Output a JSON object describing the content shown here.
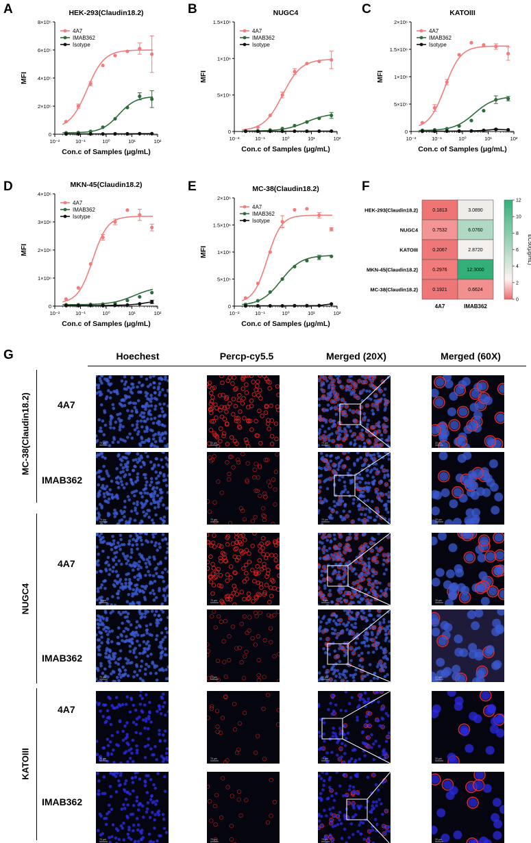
{
  "panel_letters": [
    "A",
    "B",
    "C",
    "D",
    "E",
    "F",
    "G"
  ],
  "legend_labels": [
    "4A7",
    "IMAB362",
    "Isotype"
  ],
  "colors": {
    "4A7": "#f27c7c",
    "IMAB362": "#2e6b3a",
    "Isotype": "#111111"
  },
  "chart_data": [
    {
      "type": "line",
      "title": "HEK-293(Claudin18.2)",
      "xlabel": "Con.c of Samples (μg/mL)",
      "ylabel": "MFI",
      "xscale": "log",
      "xlim": [
        0.01,
        100
      ],
      "ylim": [
        0,
        800000
      ],
      "yticks": [
        0,
        200000,
        400000,
        600000,
        800000
      ],
      "ytick_labels": [
        "0",
        "2×10⁵",
        "4×10⁵",
        "6×10⁵",
        "8×10⁵"
      ],
      "xtick_labels": [
        "10⁻²",
        "10⁻¹",
        "10⁰",
        "10¹",
        "10²"
      ],
      "series": [
        {
          "name": "4A7",
          "x": [
            0.0274,
            0.0823,
            0.247,
            0.741,
            2.22,
            6.67,
            20,
            60
          ],
          "y": [
            90000,
            200000,
            360000,
            490000,
            560000,
            590000,
            610000,
            570000
          ],
          "err": [
            0,
            15000,
            15000,
            0,
            0,
            0,
            40000,
            130000
          ],
          "fit": {
            "bottom": 40000,
            "top": 600000,
            "ec50": 0.1813,
            "hill": 1.3
          }
        },
        {
          "name": "IMAB362",
          "x": [
            0.0274,
            0.0823,
            0.247,
            0.741,
            2.22,
            6.67,
            20,
            60
          ],
          "y": [
            10000,
            12000,
            20000,
            50000,
            110000,
            190000,
            270000,
            250000
          ],
          "err": [
            0,
            0,
            0,
            0,
            0,
            0,
            25000,
            60000
          ],
          "fit": {
            "bottom": 10000,
            "top": 270000,
            "ec50": 3.089,
            "hill": 1.3
          }
        },
        {
          "name": "Isotype",
          "x": [
            0.0274,
            0.0823,
            0.247,
            0.741,
            2.22,
            6.67,
            20,
            60
          ],
          "y": [
            2000,
            2000,
            2000,
            2000,
            3000,
            3000,
            4000,
            4000
          ],
          "err": [
            0,
            0,
            0,
            0,
            0,
            0,
            0,
            0
          ]
        }
      ]
    },
    {
      "type": "line",
      "title": "NUGC4",
      "xlabel": "Con.c of Samples (μg/mL)",
      "ylabel": "MFI",
      "xscale": "log",
      "xlim": [
        0.01,
        100
      ],
      "ylim": [
        0,
        1500000
      ],
      "yticks": [
        0,
        500000,
        1000000,
        1500000
      ],
      "ytick_labels": [
        "0",
        "5×10⁵",
        "1×10⁶",
        "1.5×10⁶"
      ],
      "xtick_labels": [
        "10⁻²",
        "10⁻¹",
        "10⁰",
        "10¹",
        "10²"
      ],
      "series": [
        {
          "name": "4A7",
          "x": [
            0.0274,
            0.0823,
            0.247,
            0.741,
            2.22,
            6.67,
            20,
            60
          ],
          "y": [
            15000,
            60000,
            220000,
            500000,
            820000,
            930000,
            960000,
            980000
          ],
          "err": [
            0,
            0,
            0,
            40000,
            40000,
            0,
            0,
            120000
          ],
          "fit": {
            "bottom": 10000,
            "top": 990000,
            "ec50": 0.7532,
            "hill": 1.2
          }
        },
        {
          "name": "IMAB362",
          "x": [
            0.0274,
            0.0823,
            0.247,
            0.741,
            2.22,
            6.67,
            20,
            60
          ],
          "y": [
            5000,
            8000,
            20000,
            40000,
            80000,
            130000,
            180000,
            220000
          ],
          "err": [
            0,
            0,
            0,
            0,
            0,
            0,
            0,
            40000
          ],
          "fit": {
            "bottom": 5000,
            "top": 250000,
            "ec50": 6.076,
            "hill": 1.0
          }
        },
        {
          "name": "Isotype",
          "x": [
            0.0274,
            0.0823,
            0.247,
            0.741,
            2.22,
            6.67,
            20,
            60
          ],
          "y": [
            3000,
            3000,
            3000,
            3000,
            4000,
            4000,
            4000,
            5000
          ],
          "err": [
            0,
            0,
            0,
            0,
            0,
            0,
            0,
            0
          ]
        }
      ]
    },
    {
      "type": "line",
      "title": "KATOIII",
      "xlabel": "Con.c of Samples (μg/mL)",
      "ylabel": "MFI",
      "xscale": "log",
      "xlim": [
        0.01,
        100
      ],
      "ylim": [
        0,
        2000000
      ],
      "yticks": [
        0,
        500000,
        1000000,
        1500000,
        2000000
      ],
      "ytick_labels": [
        "0",
        "5×10⁵",
        "1×10⁶",
        "1.5×10⁶",
        "2×10⁶"
      ],
      "xtick_labels": [
        "10⁻²",
        "10⁻¹",
        "10⁰",
        "10¹",
        "10²"
      ],
      "series": [
        {
          "name": "4A7",
          "x": [
            0.0274,
            0.0823,
            0.247,
            0.741,
            2.22,
            6.67,
            20,
            60
          ],
          "y": [
            160000,
            430000,
            900000,
            1400000,
            1620000,
            1580000,
            1550000,
            1420000
          ],
          "err": [
            0,
            60000,
            50000,
            0,
            0,
            0,
            50000,
            120000
          ],
          "fit": {
            "bottom": 50000,
            "top": 1560000,
            "ec50": 0.2067,
            "hill": 1.4
          }
        },
        {
          "name": "IMAB362",
          "x": [
            0.0274,
            0.0823,
            0.247,
            0.741,
            2.22,
            6.67,
            20,
            60
          ],
          "y": [
            20000,
            30000,
            50000,
            100000,
            200000,
            380000,
            580000,
            600000
          ],
          "err": [
            0,
            0,
            0,
            0,
            0,
            0,
            70000,
            40000
          ],
          "fit": {
            "bottom": 15000,
            "top": 640000,
            "ec50": 2.872,
            "hill": 1.1
          }
        },
        {
          "name": "Isotype",
          "x": [
            0.0274,
            0.0823,
            0.247,
            0.741,
            2.22,
            6.67,
            20,
            60
          ],
          "y": [
            5000,
            5000,
            6000,
            8000,
            10000,
            20000,
            40000,
            30000
          ],
          "err": [
            0,
            0,
            0,
            0,
            0,
            0,
            10000,
            0
          ]
        }
      ]
    },
    {
      "type": "line",
      "title": "MKN-45(Claudin18.2)",
      "xlabel": "Con.c of Samples (μg/mL)",
      "ylabel": "MFI",
      "xscale": "log",
      "xlim": [
        0.01,
        100
      ],
      "ylim": [
        0,
        4000000
      ],
      "yticks": [
        0,
        1000000,
        2000000,
        3000000,
        4000000
      ],
      "ytick_labels": [
        "0",
        "1×10⁶",
        "2×10⁶",
        "3×10⁶",
        "4×10⁶"
      ],
      "xtick_labels": [
        "10⁻²",
        "10⁻¹",
        "10⁰",
        "10¹",
        "10²"
      ],
      "series": [
        {
          "name": "4A7",
          "x": [
            0.0274,
            0.0823,
            0.247,
            0.741,
            2.22,
            6.67,
            20,
            60
          ],
          "y": [
            250000,
            650000,
            1500000,
            2450000,
            3000000,
            3420000,
            3250000,
            2800000
          ],
          "err": [
            0,
            0,
            0,
            100000,
            100000,
            0,
            200000,
            120000
          ],
          "fit": {
            "bottom": 100000,
            "top": 3200000,
            "ec50": 0.2976,
            "hill": 1.5
          }
        },
        {
          "name": "IMAB362",
          "x": [
            0.0274,
            0.0823,
            0.247,
            0.741,
            2.22,
            6.67,
            20,
            60
          ],
          "y": [
            50000,
            50000,
            60000,
            70000,
            100000,
            200000,
            330000,
            480000
          ],
          "err": [
            0,
            0,
            0,
            0,
            0,
            0,
            0,
            0
          ],
          "fit": {
            "bottom": 50000,
            "top": 700000,
            "ec50": 12.3,
            "hill": 1.0
          }
        },
        {
          "name": "Isotype",
          "x": [
            0.0274,
            0.0823,
            0.247,
            0.741,
            2.22,
            6.67,
            20,
            60
          ],
          "y": [
            20000,
            20000,
            20000,
            20000,
            30000,
            40000,
            80000,
            150000
          ],
          "err": [
            0,
            0,
            0,
            0,
            0,
            0,
            0,
            60000
          ]
        }
      ]
    },
    {
      "type": "line",
      "title": "MC-38(Claudin18.2)",
      "xlabel": "Con.c of Samples (μg/mL)",
      "ylabel": "MFI",
      "xscale": "log",
      "xlim": [
        0.01,
        100
      ],
      "ylim": [
        0,
        2000000
      ],
      "yticks": [
        0,
        500000,
        1000000,
        1500000,
        2000000
      ],
      "ytick_labels": [
        "0",
        "5×10⁵",
        "1×10⁶",
        "1.5×10⁶",
        "2×10⁶"
      ],
      "xtick_labels": [
        "10⁻²",
        "10⁻¹",
        "10⁰",
        "10¹",
        "10²"
      ],
      "series": [
        {
          "name": "4A7",
          "x": [
            0.0274,
            0.0823,
            0.247,
            0.741,
            2.22,
            6.67,
            20,
            60
          ],
          "y": [
            150000,
            420000,
            1000000,
            1560000,
            1780000,
            1800000,
            1680000,
            1420000
          ],
          "err": [
            0,
            0,
            0,
            110000,
            0,
            0,
            50000,
            30000
          ],
          "fit": {
            "bottom": 60000,
            "top": 1680000,
            "ec50": 0.1921,
            "hill": 1.6
          }
        },
        {
          "name": "IMAB362",
          "x": [
            0.0274,
            0.0823,
            0.247,
            0.741,
            2.22,
            6.67,
            20,
            60
          ],
          "y": [
            30000,
            100000,
            260000,
            500000,
            730000,
            840000,
            900000,
            920000
          ],
          "err": [
            0,
            0,
            0,
            0,
            0,
            0,
            40000,
            0
          ],
          "fit": {
            "bottom": 10000,
            "top": 940000,
            "ec50": 0.6624,
            "hill": 1.1
          }
        },
        {
          "name": "Isotype",
          "x": [
            0.0274,
            0.0823,
            0.247,
            0.741,
            2.22,
            6.67,
            20,
            60
          ],
          "y": [
            5000,
            5000,
            5000,
            5000,
            8000,
            8000,
            10000,
            40000
          ],
          "err": [
            0,
            0,
            0,
            0,
            0,
            0,
            0,
            0
          ]
        }
      ]
    },
    {
      "type": "heatmap",
      "rows": [
        "HEK-293(Claudin18.2)",
        "NUGC4",
        "KATOIII",
        "MKN-45(Claudin18.2)",
        "MC-38(Claudin18.2)"
      ],
      "cols": [
        "4A7",
        "IMAB362"
      ],
      "values": [
        [
          0.1813,
          3.089
        ],
        [
          0.7532,
          6.076
        ],
        [
          0.2067,
          2.872
        ],
        [
          0.2976,
          12.3
        ],
        [
          0.1921,
          0.6624
        ]
      ],
      "value_labels": [
        [
          "0.1813",
          "3.0890"
        ],
        [
          "0.7532",
          "6.0760"
        ],
        [
          "0.2067",
          "2.8720"
        ],
        [
          "0.2976",
          "12.3000"
        ],
        [
          "0.1921",
          "0.6624"
        ]
      ],
      "colorbar": {
        "label": "EC50(μg/mL)",
        "ticks": [
          0,
          2,
          4,
          6,
          8,
          10,
          12
        ],
        "tick_labels": [
          "0",
          "2",
          "4",
          "6",
          "8",
          "10",
          "12"
        ],
        "min": 0,
        "max": 12
      }
    }
  ],
  "microscopy": {
    "column_headers": [
      "Hoechest",
      "Percp-cy5.5",
      "Merged (20X)",
      "Merged (60X)"
    ],
    "groups": [
      {
        "name": "MC-38(Claudin18.2)",
        "rows": [
          "4A7",
          "IMAB362"
        ]
      },
      {
        "name": "NUGC4",
        "rows": [
          "4A7",
          "IMAB362"
        ]
      },
      {
        "name": "KATOIII",
        "rows": [
          "4A7",
          "IMAB362"
        ]
      }
    ],
    "scale_labels": [
      "70 μm",
      "20 μm"
    ]
  }
}
